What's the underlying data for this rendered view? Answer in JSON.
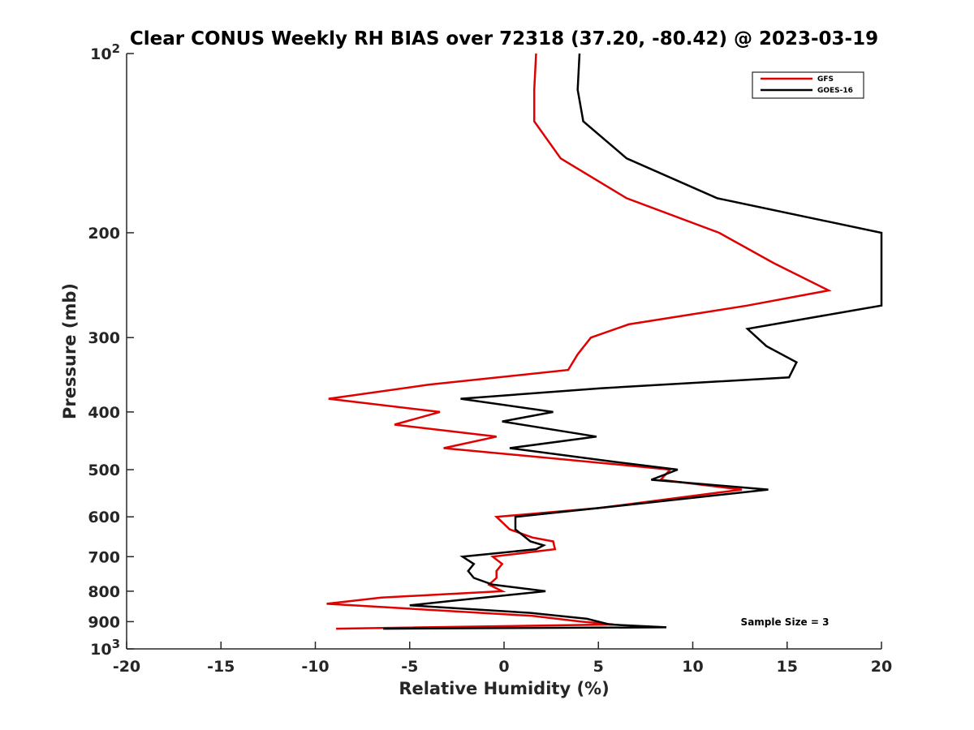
{
  "chart_data": {
    "type": "line",
    "title": "Clear CONUS Weekly RH BIAS over 72318 (37.20, -80.42) @ 2023-03-19",
    "xlabel": "Relative Humidity (%)",
    "ylabel": "Pressure (mb)",
    "xlim": [
      -20,
      20
    ],
    "ylim": [
      100,
      1000
    ],
    "y_scale": "log",
    "y_reversed": true,
    "grid": false,
    "legend_position": "top-right",
    "x_ticks": [
      "-20",
      "-15",
      "-10",
      "-5",
      "0",
      "5",
      "10",
      "15",
      "20"
    ],
    "y_ticks": [
      {
        "base": "10",
        "exp": "2",
        "value": 100
      },
      {
        "label": "200",
        "value": 200
      },
      {
        "label": "300",
        "value": 300
      },
      {
        "label": "400",
        "value": 400
      },
      {
        "label": "500",
        "value": 500
      },
      {
        "label": "600",
        "value": 600
      },
      {
        "label": "700",
        "value": 700
      },
      {
        "label": "800",
        "value": 800
      },
      {
        "label": "900",
        "value": 900
      },
      {
        "base": "10",
        "exp": "3",
        "value": 1000
      }
    ],
    "series": [
      {
        "name": "GFS",
        "color": "#e00000",
        "points": [
          [
            1.7,
            100
          ],
          [
            1.6,
            115
          ],
          [
            1.6,
            130
          ],
          [
            3.0,
            150
          ],
          [
            6.5,
            175
          ],
          [
            11.4,
            200
          ],
          [
            14.3,
            225
          ],
          [
            17.2,
            250
          ],
          [
            12.9,
            265
          ],
          [
            6.6,
            285
          ],
          [
            4.6,
            300
          ],
          [
            3.9,
            320
          ],
          [
            3.4,
            340
          ],
          [
            -4.0,
            360
          ],
          [
            -9.3,
            380
          ],
          [
            -3.4,
            400
          ],
          [
            -5.8,
            420
          ],
          [
            -0.4,
            440
          ],
          [
            -3.2,
            460
          ],
          [
            6.0,
            490
          ],
          [
            8.8,
            500
          ],
          [
            8.3,
            520
          ],
          [
            12.6,
            540
          ],
          [
            5.0,
            580
          ],
          [
            -0.4,
            600
          ],
          [
            0.3,
            630
          ],
          [
            1.5,
            650
          ],
          [
            2.6,
            660
          ],
          [
            2.7,
            680
          ],
          [
            -0.6,
            700
          ],
          [
            -0.1,
            720
          ],
          [
            -0.4,
            740
          ],
          [
            -0.4,
            760
          ],
          [
            -0.8,
            780
          ],
          [
            -0.1,
            800
          ],
          [
            -6.5,
            820
          ],
          [
            -9.4,
            840
          ],
          [
            1.5,
            880
          ],
          [
            4.1,
            900
          ],
          [
            5.8,
            910
          ],
          [
            -8.9,
            925
          ]
        ]
      },
      {
        "name": "GOES-16",
        "color": "#000000",
        "points": [
          [
            4.0,
            100
          ],
          [
            3.9,
            115
          ],
          [
            4.2,
            130
          ],
          [
            6.5,
            150
          ],
          [
            11.3,
            175
          ],
          [
            20.0,
            200
          ],
          [
            20.0,
            265
          ],
          [
            12.9,
            290
          ],
          [
            13.9,
            310
          ],
          [
            15.5,
            330
          ],
          [
            15.1,
            350
          ],
          [
            5.1,
            365
          ],
          [
            -2.3,
            380
          ],
          [
            2.6,
            400
          ],
          [
            -0.1,
            415
          ],
          [
            4.9,
            440
          ],
          [
            0.3,
            460
          ],
          [
            5.8,
            485
          ],
          [
            9.2,
            500
          ],
          [
            7.8,
            520
          ],
          [
            14.0,
            540
          ],
          [
            5.0,
            580
          ],
          [
            0.6,
            600
          ],
          [
            0.6,
            630
          ],
          [
            1.4,
            660
          ],
          [
            2.1,
            670
          ],
          [
            1.7,
            680
          ],
          [
            -2.2,
            700
          ],
          [
            -1.6,
            720
          ],
          [
            -1.9,
            740
          ],
          [
            -1.6,
            760
          ],
          [
            -0.6,
            780
          ],
          [
            2.2,
            800
          ],
          [
            -2.7,
            830
          ],
          [
            -5.0,
            845
          ],
          [
            1.4,
            870
          ],
          [
            4.4,
            890
          ],
          [
            5.6,
            910
          ],
          [
            8.6,
            920
          ],
          [
            -6.4,
            925
          ]
        ]
      }
    ],
    "annotation": "Sample Size = 3"
  }
}
